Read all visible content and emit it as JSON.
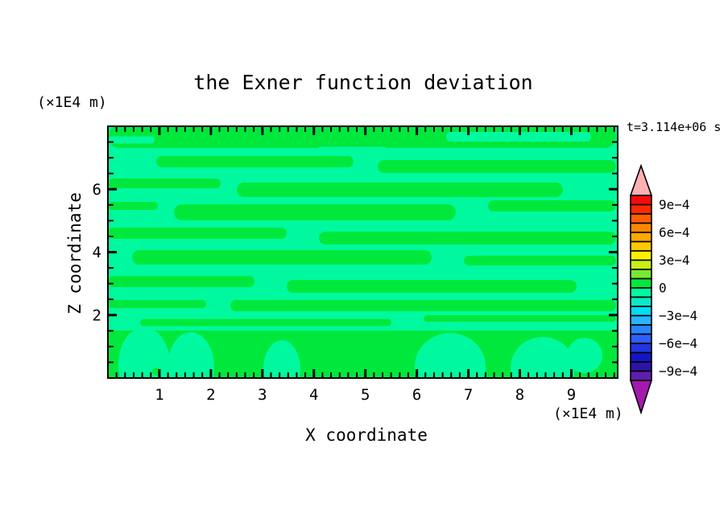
{
  "title": "the Exner function deviation",
  "timestamp": "t=3.114e+06 s",
  "y_axis_unit": "(×1E4 m)",
  "x_axis_unit": "(×1E4 m)",
  "x_label": "X coordinate",
  "y_label": "Z coordinate",
  "chart_data": {
    "type": "filled-contour",
    "title": "the Exner function deviation",
    "xlabel": "X coordinate (×1E4 m)",
    "ylabel": "Z coordinate (×1E4 m)",
    "time_annotation": "t=3.114e+06 s",
    "x_range": [
      0,
      9.9
    ],
    "y_range": [
      0,
      8
    ],
    "x_major_ticks": [
      1,
      2,
      3,
      4,
      5,
      6,
      7,
      8,
      9
    ],
    "x_minor_per_unit": 6,
    "y_major_ticks": [
      2,
      4,
      6
    ],
    "y_minor_step": 0.5,
    "contour_interval": 0.0001,
    "value_range_shown": [
      -0.001,
      0.001
    ],
    "field_colors": {
      "band_0_to_1e-4": "#00e83c",
      "band_minus1e-4_to_0": "#00f99e"
    },
    "colorbar": {
      "labels": [
        "9e−4",
        "6e−4",
        "3e−4",
        "0",
        "−3e−4",
        "−6e−4",
        "−9e−4"
      ],
      "label_values": [
        0.0009,
        0.0006,
        0.0003,
        0,
        -0.0003,
        -0.0006,
        -0.0009
      ],
      "segments_top_to_bottom": [
        "#fa0a0a",
        "#ff2800",
        "#ff5f00",
        "#ff8700",
        "#ffa800",
        "#ffc800",
        "#fff000",
        "#c8f014",
        "#78e832",
        "#00e83c",
        "#00f99e",
        "#0ce9c8",
        "#00ddf5",
        "#28b4ff",
        "#2884ff",
        "#2d5fff",
        "#2136e0",
        "#1414c8",
        "#2e14a5",
        "#5f1ead"
      ],
      "over_arrow_color": "#ffb0b4",
      "under_arrow_color": "#a519ae"
    },
    "field_bands_positive": [
      {
        "x0": 0,
        "x1": 631,
        "y": 13,
        "h": 28
      },
      {
        "x0": 60,
        "x1": 305,
        "y": 44,
        "h": 14
      },
      {
        "x0": 335,
        "x1": 631,
        "y": 50,
        "h": 16
      },
      {
        "x0": 0,
        "x1": 140,
        "y": 71,
        "h": 12
      },
      {
        "x0": 160,
        "x1": 565,
        "y": 79,
        "h": 18
      },
      {
        "x0": 0,
        "x1": 62,
        "y": 99,
        "h": 10
      },
      {
        "x0": 82,
        "x1": 432,
        "y": 107,
        "h": 20
      },
      {
        "x0": 472,
        "x1": 631,
        "y": 99,
        "h": 14
      },
      {
        "x0": 0,
        "x1": 222,
        "y": 133,
        "h": 14
      },
      {
        "x0": 262,
        "x1": 631,
        "y": 139,
        "h": 16
      },
      {
        "x0": 30,
        "x1": 402,
        "y": 163,
        "h": 18
      },
      {
        "x0": 442,
        "x1": 631,
        "y": 167,
        "h": 12
      },
      {
        "x0": 0,
        "x1": 182,
        "y": 193,
        "h": 14
      },
      {
        "x0": 222,
        "x1": 582,
        "y": 199,
        "h": 16
      },
      {
        "x0": 0,
        "x1": 122,
        "y": 221,
        "h": 10
      },
      {
        "x0": 152,
        "x1": 631,
        "y": 223,
        "h": 14
      },
      {
        "x0": 40,
        "x1": 352,
        "y": 244,
        "h": 9
      },
      {
        "x0": 392,
        "x1": 631,
        "y": 239,
        "h": 8
      }
    ],
    "field_holes_negative": [
      {
        "x0": 0,
        "x1": 58,
        "y": 17,
        "h": 9
      },
      {
        "x0": 420,
        "x1": 600,
        "y": 13,
        "h": 12
      },
      {
        "x0": 258,
        "x1": 348,
        "y": 31,
        "h": 11
      }
    ],
    "bottom_region": {
      "y_top": 254,
      "note": "lowest layer dominated by 0..1e-4 band"
    },
    "bottom_blobs_negative": [
      {
        "cx": 45,
        "cy": 296,
        "rx": 32,
        "ry": 46
      },
      {
        "cx": 103,
        "cy": 299,
        "rx": 29,
        "ry": 43
      },
      {
        "cx": 216,
        "cy": 302,
        "rx": 23,
        "ry": 36
      },
      {
        "cx": 425,
        "cy": 299,
        "rx": 44,
        "ry": 42
      },
      {
        "cx": 540,
        "cy": 300,
        "rx": 40,
        "ry": 38
      },
      {
        "cx": 592,
        "cy": 285,
        "rx": 22,
        "ry": 22
      }
    ],
    "bottom_dot_positive": {
      "cx": 60,
      "cy": 305,
      "r": 5
    }
  }
}
